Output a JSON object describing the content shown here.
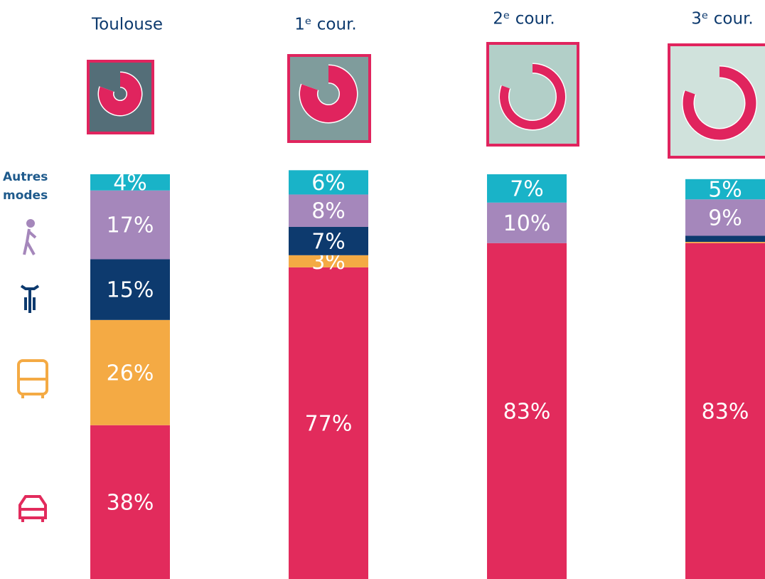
{
  "chart_data": {
    "type": "stacked_bar",
    "categories": [
      "Toulouse",
      "1ᵉ cour.",
      "2ᵉ cour.",
      "3ᵉ cour."
    ],
    "ylim": [
      0,
      100
    ],
    "series": [
      {
        "color": "#e22b5c",
        "values": [
          38,
          77,
          83,
          83
        ],
        "value_labels": [
          "38%",
          "77%",
          "83%",
          "83%"
        ]
      },
      {
        "color": "#f4aa44",
        "values": [
          26,
          3,
          0,
          0.3
        ],
        "value_labels": [
          "26%",
          "3%",
          null,
          null
        ]
      },
      {
        "color": "#0d3a6e",
        "values": [
          15,
          7,
          0,
          1.5
        ],
        "value_labels": [
          "15%",
          "7%",
          null,
          null
        ]
      },
      {
        "color": "#a587bb",
        "values": [
          17,
          8,
          10,
          9
        ],
        "value_labels": [
          "17%",
          "8%",
          "10%",
          "9%"
        ]
      },
      {
        "name": "Autres modes",
        "color": "#19b3c8",
        "values": [
          4,
          6,
          7,
          5
        ],
        "value_labels": [
          "4%",
          "6%",
          "7%",
          "5%"
        ]
      }
    ]
  }
}
